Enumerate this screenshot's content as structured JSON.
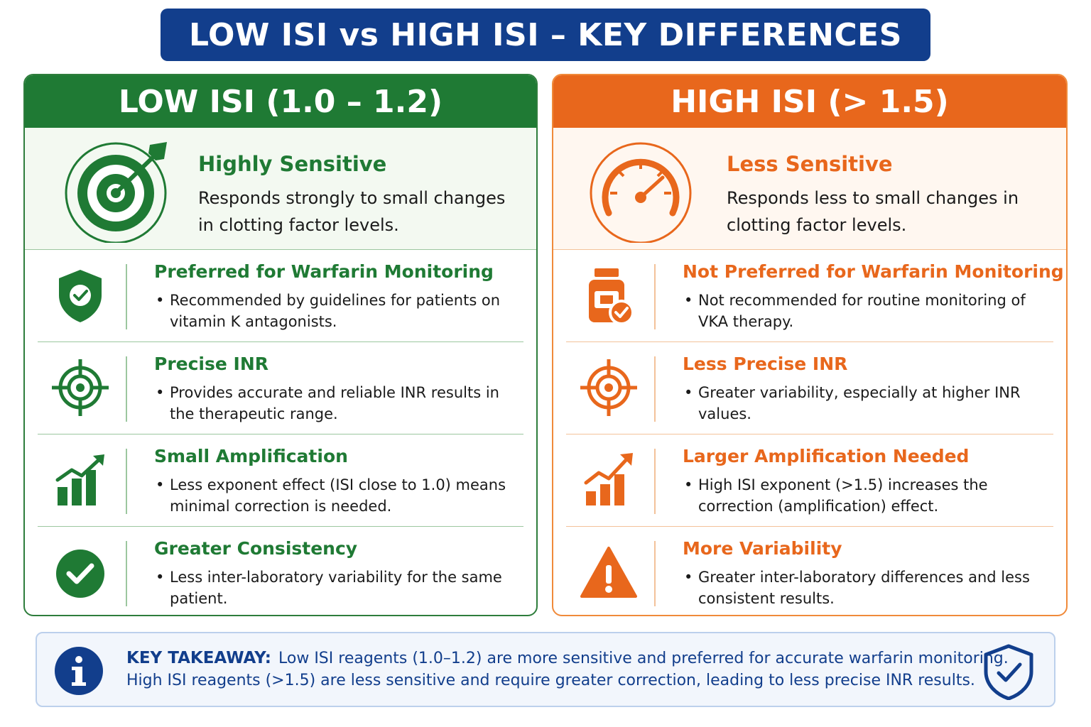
{
  "header": {
    "title": "LOW ISI vs HIGH ISI – KEY DIFFERENCES"
  },
  "colors": {
    "navy": "#123e8c",
    "green": "#1f7a34",
    "orange": "#e8671c"
  },
  "low": {
    "heading": "LOW ISI (1.0 – 1.2)",
    "hero": {
      "icon": "target-dart-icon",
      "title": "Highly Sensitive",
      "text": "Responds strongly to small changes in clotting factor levels."
    },
    "rows": [
      {
        "icon": "shield-check-icon",
        "title": "Preferred for Warfarin Monitoring",
        "text": "Recommended by guidelines for patients on vitamin K antagonists."
      },
      {
        "icon": "crosshair-icon",
        "title": "Precise INR",
        "text": "Provides accurate and reliable INR results in the therapeutic range."
      },
      {
        "icon": "bar-chart-arrow-icon",
        "title": "Small Amplification",
        "text": "Less exponent effect (ISI close to 1.0) means minimal correction is needed."
      },
      {
        "icon": "check-circle-icon",
        "title": "Greater Consistency",
        "text": "Less inter-laboratory variability for the same patient."
      }
    ]
  },
  "high": {
    "heading": "HIGH ISI (> 1.5)",
    "hero": {
      "icon": "gauge-icon",
      "title": "Less Sensitive",
      "text": "Responds less to small changes in clotting factor levels."
    },
    "rows": [
      {
        "icon": "pill-bottle-icon",
        "title": "Not Preferred for Warfarin Monitoring",
        "text": "Not recommended for routine monitoring of VKA therapy."
      },
      {
        "icon": "crosshair-icon",
        "title": "Less Precise INR",
        "text": "Greater variability, especially at higher INR values."
      },
      {
        "icon": "bar-chart-arrow-icon",
        "title": "Larger Amplification Needed",
        "text": "High ISI exponent (>1.5) increases the correction (amplification) effect."
      },
      {
        "icon": "warning-triangle-icon",
        "title": "More Variability",
        "text": "Greater inter-laboratory differences and less consistent results."
      }
    ]
  },
  "takeaway": {
    "label": "KEY TAKEAWAY:",
    "line1": "Low ISI reagents (1.0–1.2) are more sensitive and preferred for accurate warfarin monitoring.",
    "line2": "High ISI reagents (>1.5) are less sensitive and require greater correction, leading to less precise INR results.",
    "icon_left": "info-icon",
    "icon_right": "shield-check-icon"
  }
}
